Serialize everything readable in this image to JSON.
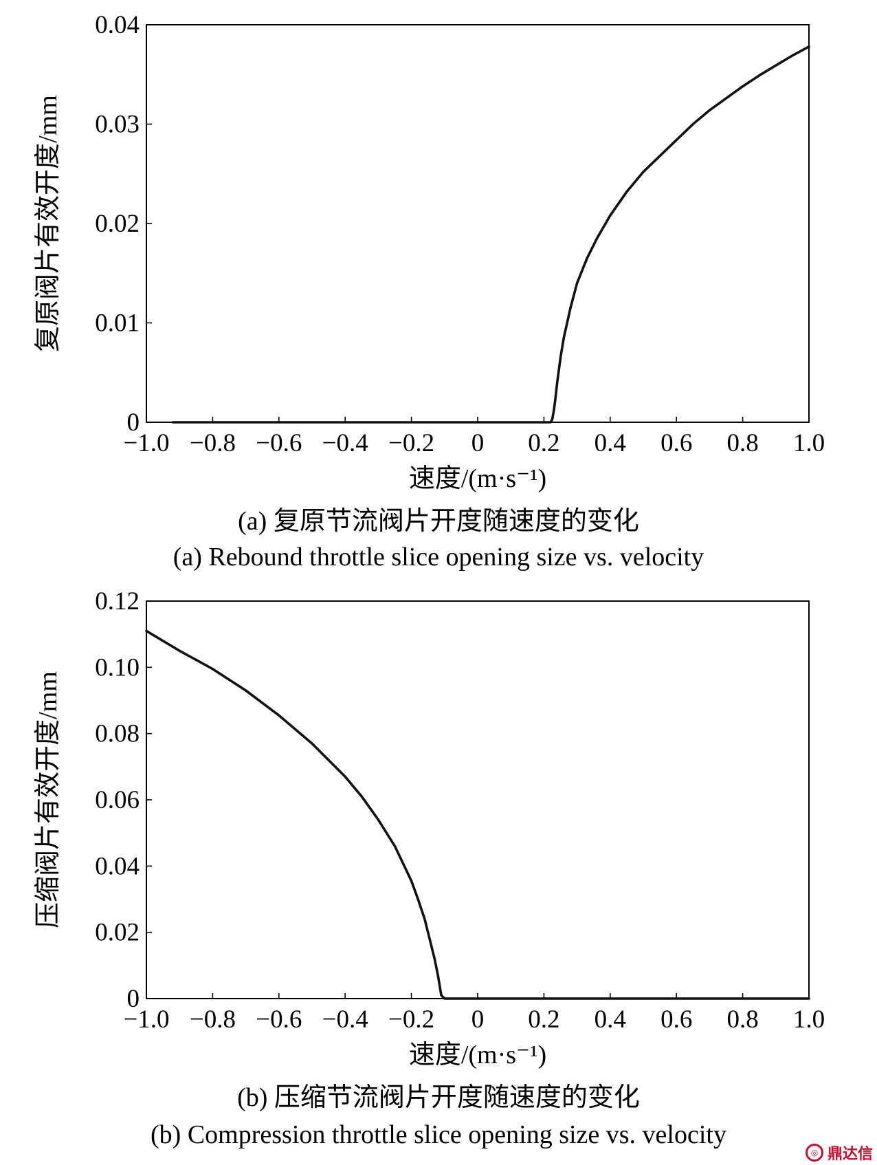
{
  "chart_data": [
    {
      "type": "line",
      "xlabel": "速度/(m·s⁻¹)",
      "ylabel": "复原阀片有效开度/mm",
      "caption_zh": "(a) 复原节流阀片开度随速度的变化",
      "caption_en": "(a) Rebound throttle slice opening size vs. velocity",
      "xlim": [
        -1.0,
        1.0
      ],
      "ylim": [
        0,
        0.04
      ],
      "x_ticks": [
        "−1.0",
        "−0.8",
        "−0.6",
        "−0.4",
        "−0.2",
        "0",
        "0.2",
        "0.4",
        "0.6",
        "0.8",
        "1.0"
      ],
      "y_ticks": [
        "0",
        "0.01",
        "0.02",
        "0.03",
        "0.04"
      ],
      "x_tick_values": [
        -1.0,
        -0.8,
        -0.6,
        -0.4,
        -0.2,
        0,
        0.2,
        0.4,
        0.6,
        0.8,
        1.0
      ],
      "y_tick_values": [
        0,
        0.01,
        0.02,
        0.03,
        0.04
      ],
      "grid": false,
      "line_color": "#111111",
      "series": [
        {
          "x": [
            -0.92,
            0.0,
            0.22,
            0.225,
            0.23,
            0.235,
            0.24,
            0.25,
            0.26,
            0.28,
            0.3,
            0.33,
            0.36,
            0.4,
            0.45,
            0.5,
            0.55,
            0.6,
            0.65,
            0.7,
            0.75,
            0.8,
            0.85,
            0.9,
            0.95,
            1.0
          ],
          "y": [
            0,
            0,
            0,
            0.0003,
            0.0012,
            0.0025,
            0.004,
            0.0065,
            0.0085,
            0.0115,
            0.014,
            0.0165,
            0.0185,
            0.0208,
            0.0232,
            0.0252,
            0.0268,
            0.0284,
            0.03,
            0.0314,
            0.0326,
            0.0338,
            0.0349,
            0.0359,
            0.0369,
            0.0378
          ]
        }
      ]
    },
    {
      "type": "line",
      "xlabel": "速度/(m·s⁻¹)",
      "ylabel": "压缩阀片有效开度/mm",
      "caption_zh": "(b) 压缩节流阀片开度随速度的变化",
      "caption_en": "(b) Compression throttle slice opening size vs. velocity",
      "xlim": [
        -1.0,
        1.0
      ],
      "ylim": [
        0,
        0.12
      ],
      "x_ticks": [
        "−1.0",
        "−0.8",
        "−0.6",
        "−0.4",
        "−0.2",
        "0",
        "0.2",
        "0.4",
        "0.6",
        "0.8",
        "1.0"
      ],
      "y_ticks": [
        "0",
        "0.02",
        "0.04",
        "0.06",
        "0.08",
        "0.10",
        "0.12"
      ],
      "x_tick_values": [
        -1.0,
        -0.8,
        -0.6,
        -0.4,
        -0.2,
        0,
        0.2,
        0.4,
        0.6,
        0.8,
        1.0
      ],
      "y_tick_values": [
        0,
        0.02,
        0.04,
        0.06,
        0.08,
        0.1,
        0.12
      ],
      "grid": false,
      "line_color": "#111111",
      "series": [
        {
          "x": [
            -1.0,
            -0.9,
            -0.8,
            -0.7,
            -0.6,
            -0.5,
            -0.4,
            -0.35,
            -0.3,
            -0.25,
            -0.2,
            -0.18,
            -0.16,
            -0.14,
            -0.13,
            -0.12,
            -0.115,
            -0.11,
            -0.1,
            0.0,
            0.5,
            1.0
          ],
          "y": [
            0.111,
            0.105,
            0.0995,
            0.093,
            0.0855,
            0.077,
            0.067,
            0.061,
            0.054,
            0.046,
            0.0355,
            0.03,
            0.024,
            0.016,
            0.012,
            0.007,
            0.004,
            0.001,
            0,
            0,
            0,
            0
          ]
        }
      ]
    }
  ],
  "watermark": {
    "text": "鼎达信"
  }
}
